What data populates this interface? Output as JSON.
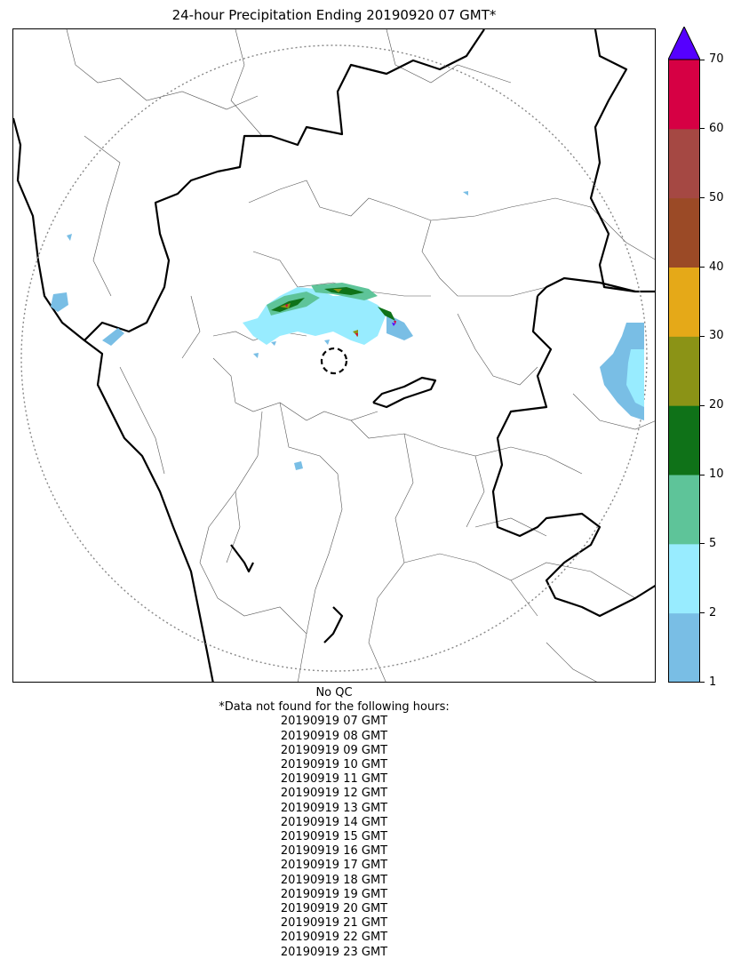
{
  "title": "24-hour Precipitation Ending 20190920 07 GMT*",
  "colorbar": {
    "ticks": [
      "1",
      "2",
      "5",
      "10",
      "20",
      "30",
      "40",
      "50",
      "60",
      "70"
    ],
    "bins": [
      {
        "from": "1",
        "to": "2",
        "color": "#79bee5"
      },
      {
        "from": "2",
        "to": "5",
        "color": "#98ecff"
      },
      {
        "from": "5",
        "to": "10",
        "color": "#5ec499"
      },
      {
        "from": "10",
        "to": "20",
        "color": "#0f7218"
      },
      {
        "from": "20",
        "to": "30",
        "color": "#8b9316"
      },
      {
        "from": "30",
        "to": "40",
        "color": "#e5a918"
      },
      {
        "from": "40",
        "to": "50",
        "color": "#9b4a26"
      },
      {
        "from": "50",
        "to": "60",
        "color": "#a54843"
      },
      {
        "from": "60",
        "to": "70",
        "color": "#d60044"
      }
    ],
    "over_color": "#5500ff"
  },
  "notes": {
    "qc": "No QC",
    "missing_header": "*Data not found for the following hours:",
    "missing_hours": [
      "20190919 07 GMT",
      "20190919 08 GMT",
      "20190919 09 GMT",
      "20190919 10 GMT",
      "20190919 11 GMT",
      "20190919 12 GMT",
      "20190919 13 GMT",
      "20190919 14 GMT",
      "20190919 15 GMT",
      "20190919 16 GMT",
      "20190919 17 GMT",
      "20190919 18 GMT",
      "20190919 19 GMT",
      "20190919 20 GMT",
      "20190919 21 GMT",
      "20190919 22 GMT",
      "20190919 23 GMT"
    ]
  }
}
